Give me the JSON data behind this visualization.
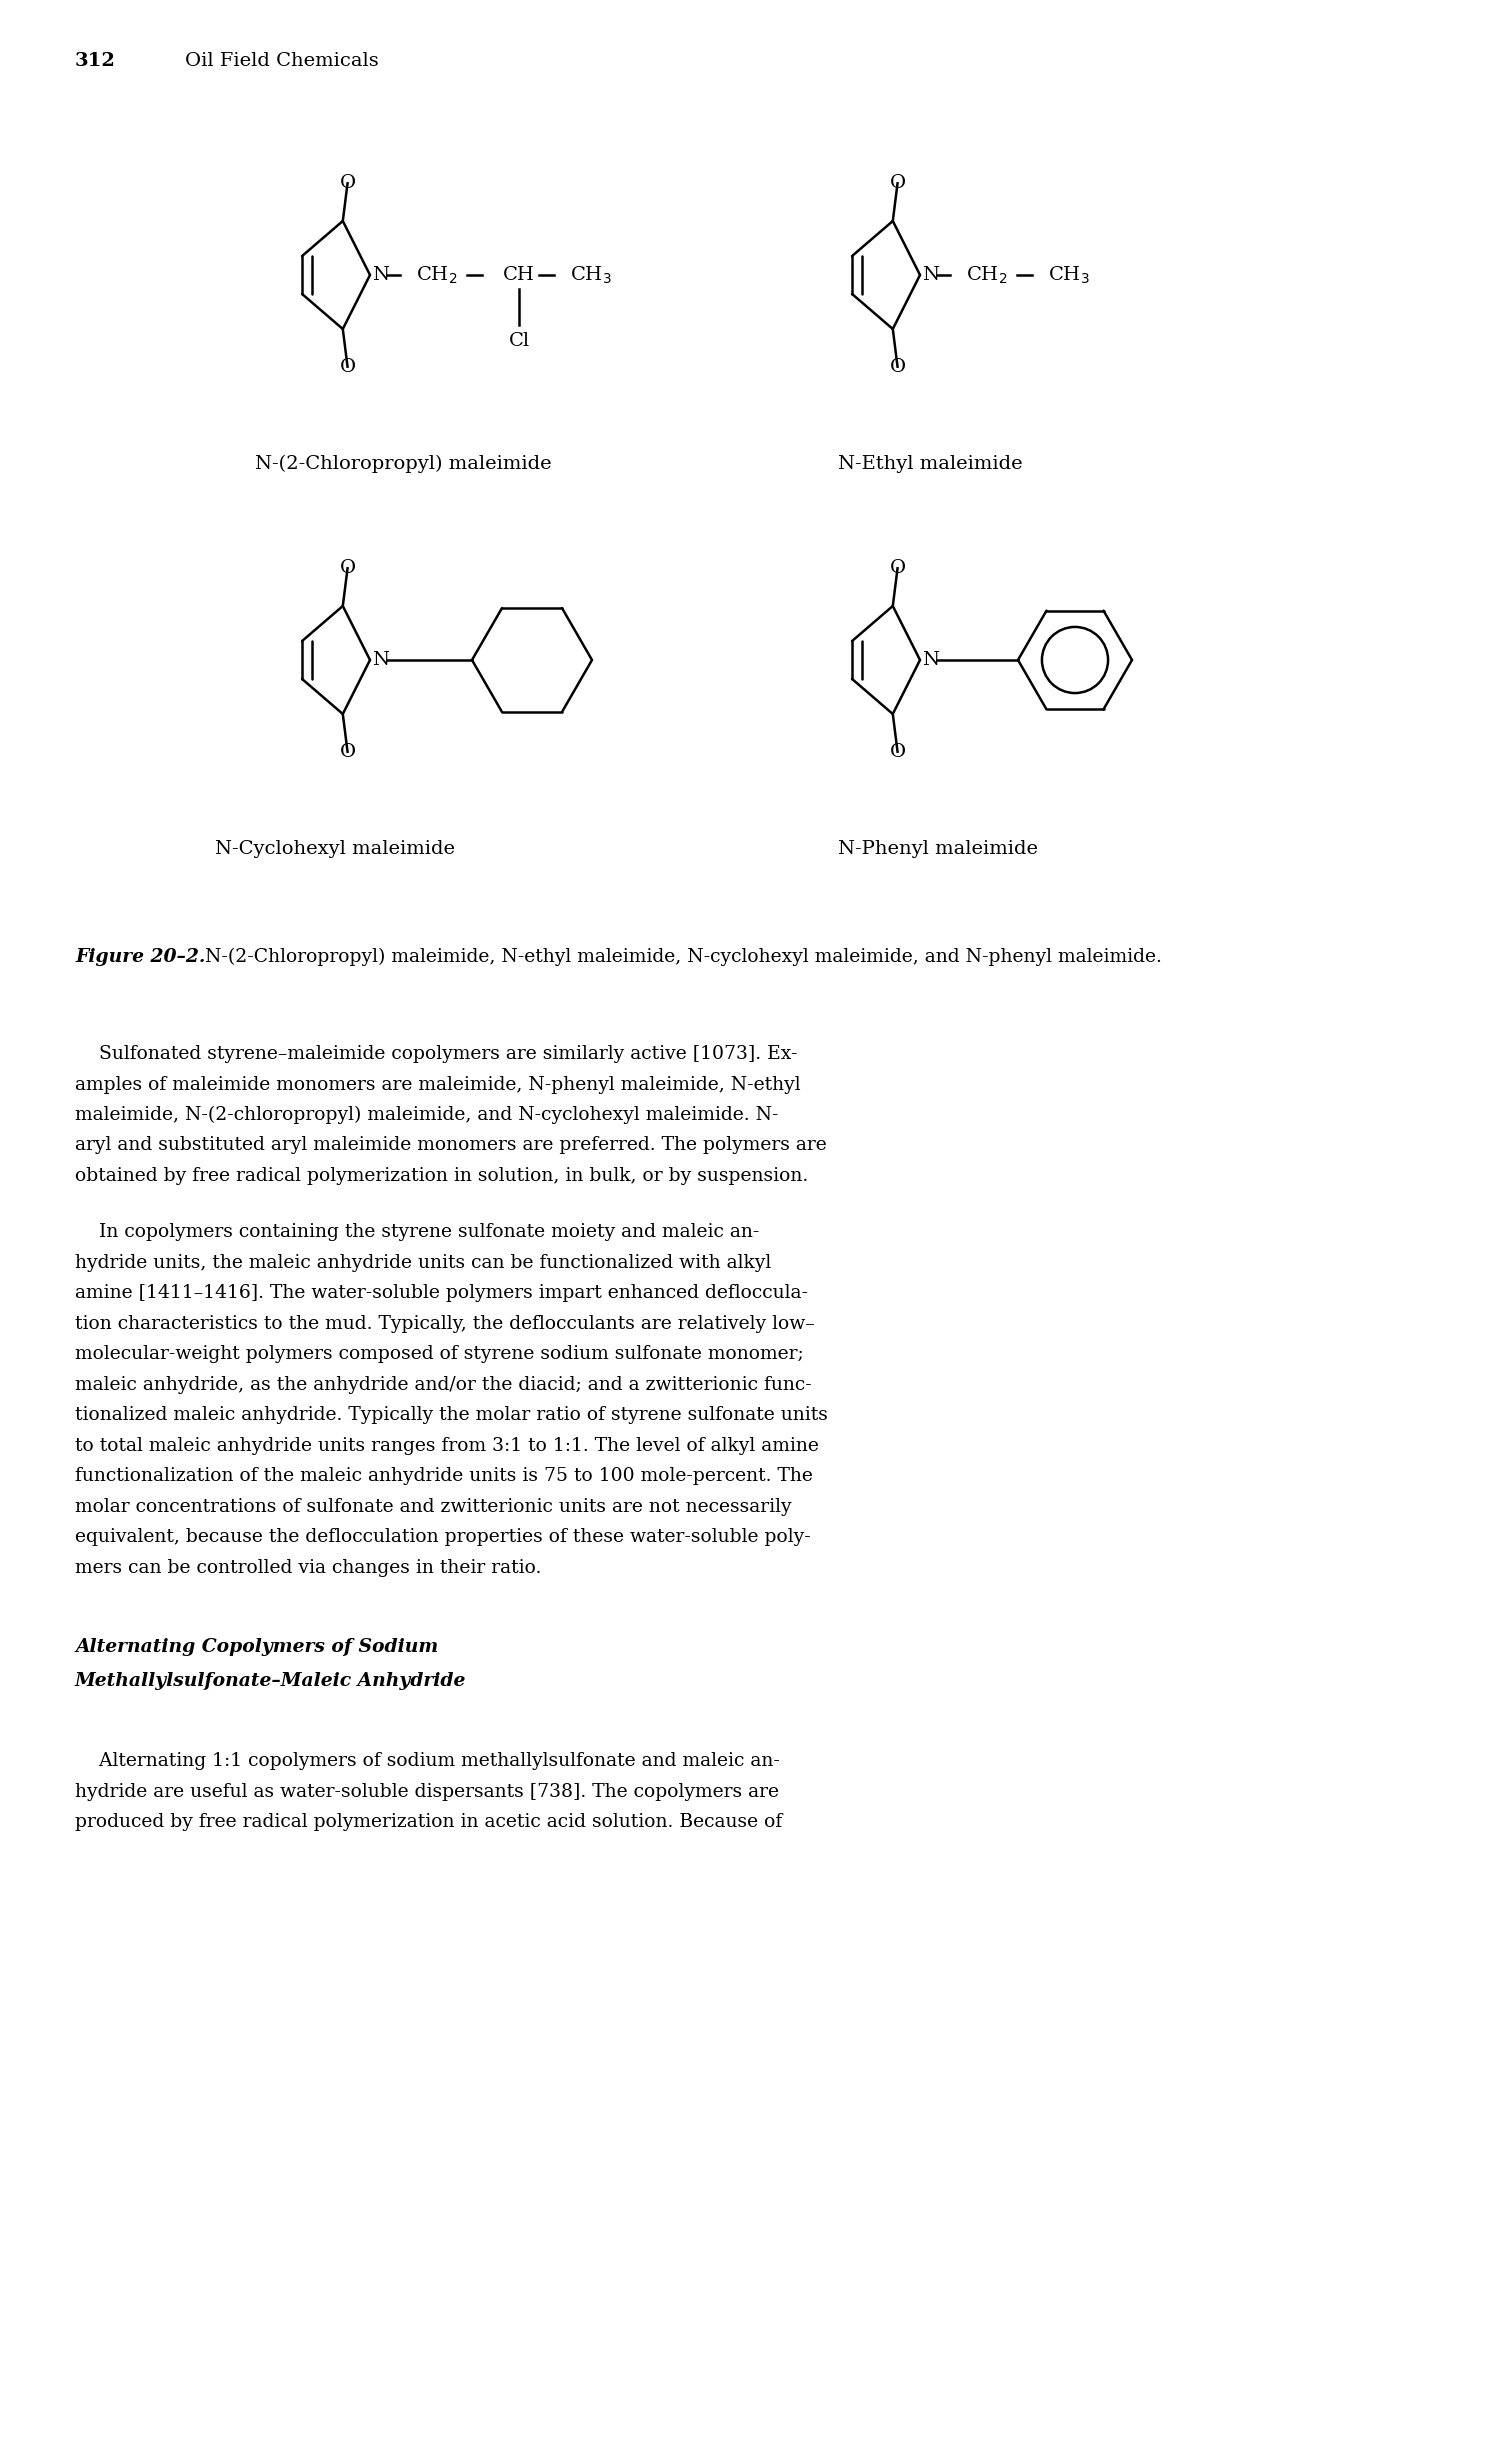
{
  "page_number": "312",
  "page_header": "Oil Field Chemicals",
  "figure_caption_bold": "Figure 20–2.",
  "figure_caption_rest": "  N-(2-Chloropropyl) maleimide, N-ethyl maleimide, N-cyclohexyl maleimide, and N-phenyl maleimide.",
  "label1": "N-(2-Chloropropyl) maleimide",
  "label2": "N-Ethyl maleimide",
  "label3": "N-Cyclohexyl maleimide",
  "label4": "N-Phenyl maleimide",
  "para1_lines": [
    "    Sulfonated styrene–maleimide copolymers are similarly active [1073]. Ex-",
    "amples of maleimide monomers are maleimide, N-phenyl maleimide, N-ethyl",
    "maleimide, N-(2-chloropropyl) maleimide, and N-cyclohexyl maleimide. N-",
    "aryl and substituted aryl maleimide monomers are preferred. The polymers are",
    "obtained by free radical polymerization in solution, in bulk, or by suspension."
  ],
  "para2_lines": [
    "    In copolymers containing the styrene sulfonate moiety and maleic an-",
    "hydride units, the maleic anhydride units can be functionalized with alkyl",
    "amine [1411–1416]. The water-soluble polymers impart enhanced defloccula-",
    "tion characteristics to the mud. Typically, the deflocculants are relatively low–",
    "molecular-weight polymers composed of styrene sodium sulfonate monomer;",
    "maleic anhydride, as the anhydride and/or the diacid; and a zwitterionic func-",
    "tionalized maleic anhydride. Typically the molar ratio of styrene sulfonate units",
    "to total maleic anhydride units ranges from 3:1 to 1:1. The level of alkyl amine",
    "functionalization of the maleic anhydride units is 75 to 100 mole-percent. The",
    "molar concentrations of sulfonate and zwitterionic units are not necessarily",
    "equivalent, because the deflocculation properties of these water-soluble poly-",
    "mers can be controlled via changes in their ratio."
  ],
  "section_line1": "Alternating Copolymers of Sodium",
  "section_line2": "Methallylsulfonate–Maleic Anhydride",
  "last_lines": [
    "    Alternating 1:1 copolymers of sodium methallylsulfonate and maleic an-",
    "hydride are useful as water-soluble dispersants [738]. The copolymers are",
    "produced by free radical polymerization in acetic acid solution. Because of"
  ],
  "bg_color": "#ffffff",
  "text_color": "#000000",
  "lw": 1.8
}
